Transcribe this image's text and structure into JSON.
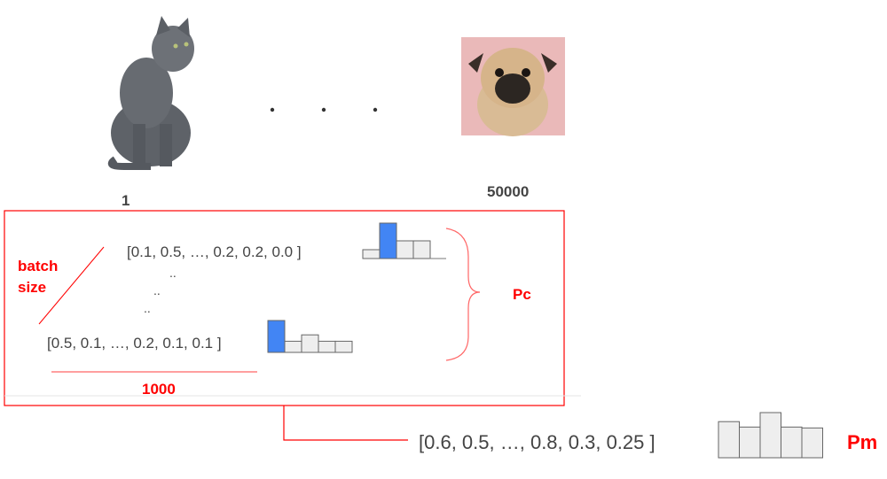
{
  "images": {
    "first": {
      "label": "1",
      "subject": "cat"
    },
    "last": {
      "label": "50000",
      "subject": "pug dog"
    },
    "ellipsis": ". . ."
  },
  "batch": {
    "batch_label_line1": "batch",
    "batch_label_line2": "size",
    "row_first": "[0.1, 0.5, …, 0.2, 0.2, 0.0 ]",
    "row_dots": [
      "..",
      "..",
      ".."
    ],
    "row_last": "[0.5, 0.1, …, 0.2, 0.1, 0.1 ]",
    "width_label": "1000",
    "hist_first": [
      0.25,
      1.0,
      0.5,
      0.5
    ],
    "hist_first_highlight": 1,
    "hist_last": [
      1.0,
      0.35,
      0.55,
      0.35,
      0.35
    ],
    "hist_last_highlight": 0,
    "brace_label": "Pc"
  },
  "mean": {
    "row": "[0.6, 0.5, …, 0.8, 0.3, 0.25 ]",
    "hist": [
      0.8,
      0.68,
      1.0,
      0.68,
      0.66
    ],
    "label": "Pm"
  },
  "colors": {
    "accent": "#ff0000",
    "highlight": "#4285f4",
    "bar": "#eeeeee",
    "text": "#444444"
  }
}
